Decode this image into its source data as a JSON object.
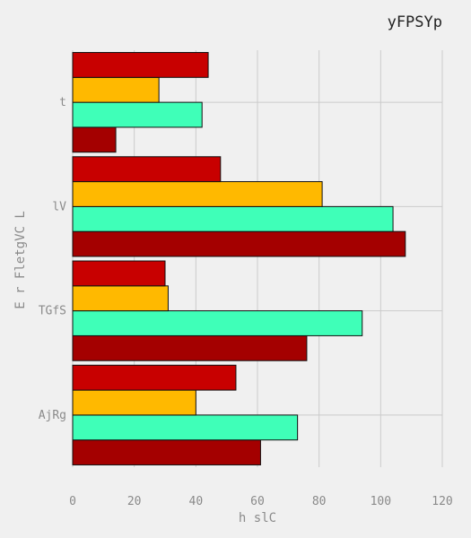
{
  "chart_data": {
    "type": "bar",
    "orientation": "horizontal",
    "title": "yFPSYp",
    "xlabel": "h slC",
    "ylabel": "E r FletgVC L",
    "categories": [
      "AjRg",
      "TGfS",
      "lV",
      "t"
    ],
    "series": [
      {
        "color": "#a40000",
        "values": [
          61,
          76,
          108,
          14
        ]
      },
      {
        "color": "#3fffb8",
        "values": [
          73,
          94,
          104,
          42
        ]
      },
      {
        "color": "#ffb900",
        "values": [
          40,
          31,
          81,
          28
        ]
      },
      {
        "color": "#c80000",
        "values": [
          53,
          30,
          48,
          44
        ]
      }
    ],
    "xlim": [
      0,
      120
    ],
    "xticks": [
      "0",
      "20",
      "40",
      "60",
      "80",
      "100",
      "120"
    ],
    "grid": true,
    "legend": "none",
    "background": "#f0f0f0"
  }
}
